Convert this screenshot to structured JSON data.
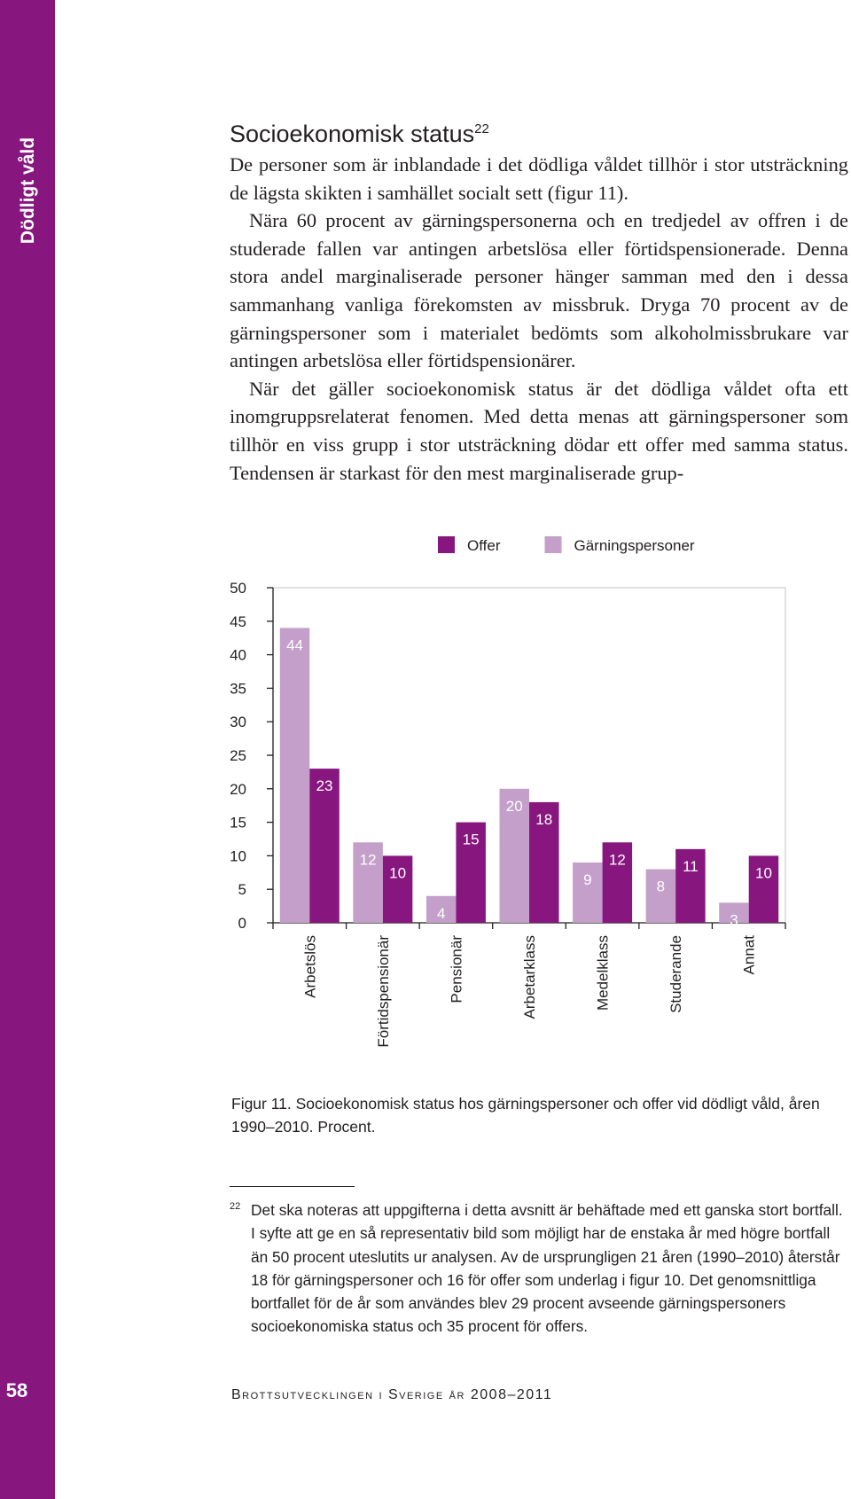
{
  "sidebar": {
    "title": "Dödligt våld",
    "page_number": "58"
  },
  "section": {
    "title": "Socioekonomisk status",
    "footnote_ref": "22"
  },
  "body": {
    "paragraphs": [
      "De personer som är inblandade i det dödliga våldet tillhör i stor utsträckning de lägsta skikten i samhället socialt sett (figur 11).",
      "Nära 60 procent av gärningspersonerna och en tredjedel av offren i de studerade fallen var antingen arbetslösa eller förtidspensionerade. Denna stora andel marginaliserade personer hänger samman med den i dessa sammanhang vanliga förekomsten av missbruk. Dryga 70 procent av de gärningspersoner som i materialet bedömts som alkoholmissbrukare var antingen arbetslösa eller förtidspensionärer.",
      "När det gäller socioekonomisk status är det dödliga våldet ofta ett inomgruppsrelaterat fenomen. Med detta menas att gärningspersoner som tillhör en viss grupp i stor utsträckning dödar ett offer med samma status. Tendensen är starkast för den mest marginaliserade grup-"
    ]
  },
  "chart_data": {
    "type": "bar",
    "categories": [
      "Arbetslös",
      "Förtidspensionär",
      "Pensionär",
      "Arbetarklass",
      "Medelklass",
      "Studerande",
      "Annat"
    ],
    "series": [
      {
        "name": "Gärningspersoner",
        "color": "#c39fca",
        "values": [
          44,
          12,
          4,
          20,
          9,
          8,
          3
        ]
      },
      {
        "name": "Offer",
        "color": "#87177f",
        "values": [
          23,
          10,
          15,
          18,
          12,
          11,
          10
        ]
      }
    ],
    "legend": [
      {
        "label": "Offer",
        "color": "#87177f"
      },
      {
        "label": "Gärningspersoner",
        "color": "#c39fca"
      }
    ],
    "legend_position": "top",
    "y_ticks": [
      "0",
      "5",
      "10",
      "15",
      "20",
      "25",
      "30",
      "35",
      "40",
      "45",
      "50"
    ],
    "ylim": [
      0,
      50
    ],
    "grid": false
  },
  "figure": {
    "caption": "Figur 11. Socioekonomisk status hos gärningspersoner och offer vid dödligt våld, åren 1990–2010. Procent."
  },
  "footnote": {
    "number": "22",
    "text": "Det ska noteras att uppgifterna i detta avsnitt är behäftade med ett ganska stort bortfall. I syfte att ge en så representativ bild som möjligt har de enstaka år med högre bortfall än 50 procent uteslutits ur analysen. Av de ursprungligen 21 åren (1990–2010) återstår 18 för gärningspersoner och 16 för offer som underlag i figur 10. Det genomsnittliga bortfallet för de år som användes blev 29 procent avseende gärningspersoners socioekonomiska status och 35 procent för offers."
  },
  "footer": {
    "running_title": "Brottsutvecklingen i Sverige år 2008–2011"
  }
}
